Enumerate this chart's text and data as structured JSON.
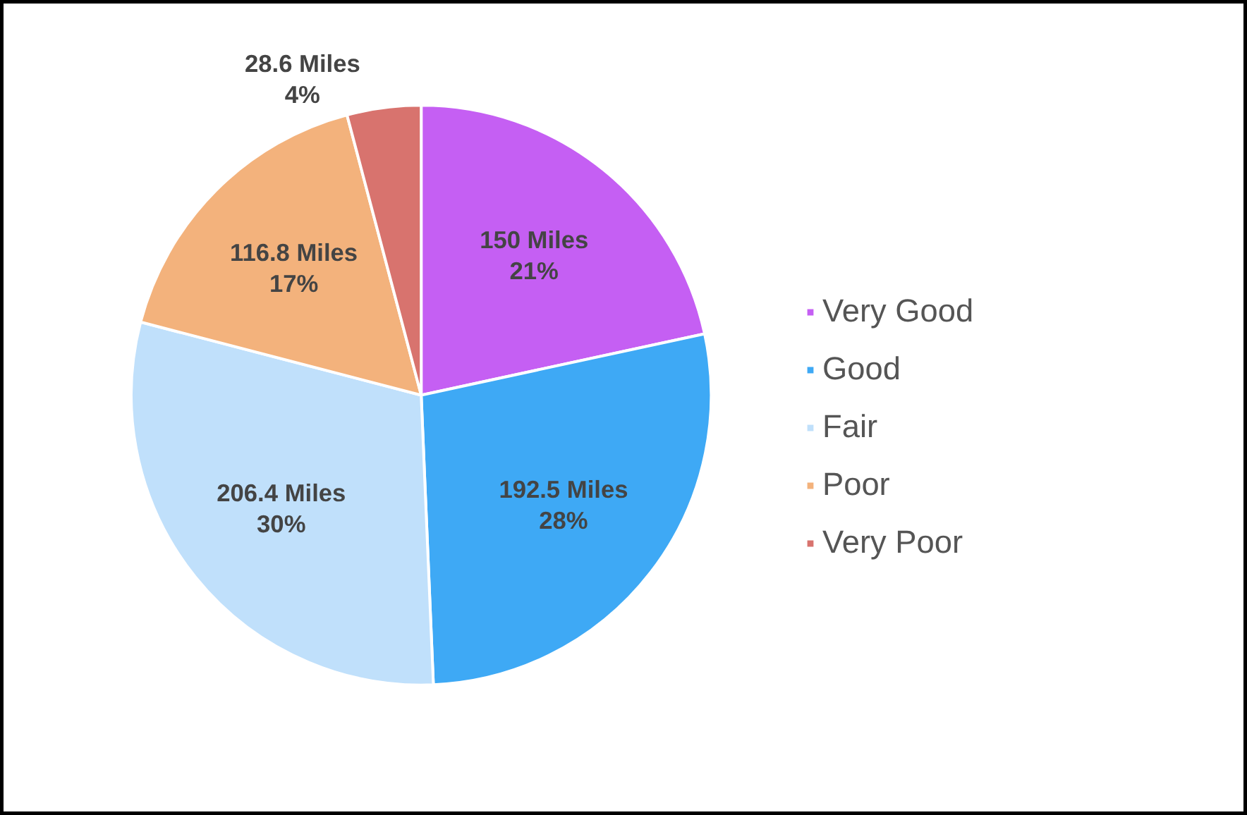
{
  "chart_data": {
    "type": "pie",
    "categories": [
      "Very Good",
      "Good",
      "Fair",
      "Poor",
      "Very Poor"
    ],
    "values": [
      150,
      192.5,
      206.4,
      116.8,
      28.6
    ],
    "colors": [
      "#c55ff3",
      "#3ea9f5",
      "#c0e0fb",
      "#f3b27c",
      "#d8736e"
    ],
    "value_labels": [
      "150 Miles\n21%",
      "192.5 Miles\n28%",
      "206.4 Miles\n30%",
      "116.8 Miles\n17%",
      "28.6 Miles\n4%"
    ],
    "legend": "right"
  }
}
